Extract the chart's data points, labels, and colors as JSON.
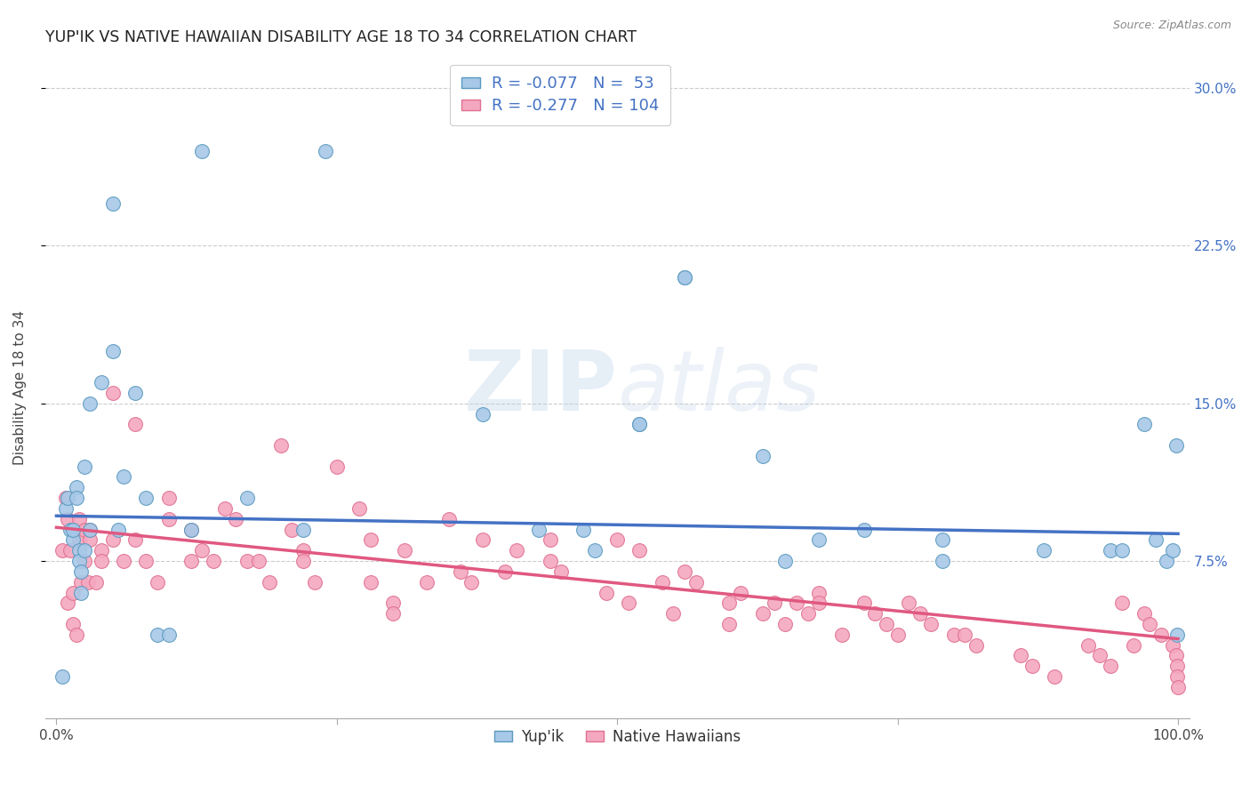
{
  "title": "YUP'IK VS NATIVE HAWAIIAN DISABILITY AGE 18 TO 34 CORRELATION CHART",
  "source": "Source: ZipAtlas.com",
  "ylabel": "Disability Age 18 to 34",
  "watermark": "ZIPatlas",
  "xlim": [
    -0.01,
    1.01
  ],
  "ylim": [
    0.0,
    0.315
  ],
  "xticks": [
    0.0,
    0.25,
    0.5,
    0.75,
    1.0
  ],
  "xticklabels": [
    "0.0%",
    "",
    "",
    "",
    "100.0%"
  ],
  "yticks": [
    0.075,
    0.15,
    0.225,
    0.3
  ],
  "yticklabels": [
    "7.5%",
    "15.0%",
    "22.5%",
    "30.0%"
  ],
  "yupik_color": "#a8c8e8",
  "yupik_edge": "#5a9abf",
  "nhawaiian_color": "#f4a8c0",
  "nhawaiian_edge": "#e07090",
  "line_yupik_color": "#4472c4",
  "line_nhawaiian_color": "#e05880",
  "title_fontsize": 12.5,
  "axis_label_fontsize": 11,
  "tick_fontsize": 11,
  "source_fontsize": 9,
  "yupik_x": [
    0.005,
    0.008,
    0.01,
    0.012,
    0.015,
    0.015,
    0.018,
    0.018,
    0.02,
    0.02,
    0.022,
    0.022,
    0.025,
    0.025,
    0.03,
    0.03,
    0.04,
    0.05,
    0.05,
    0.055,
    0.06,
    0.07,
    0.08,
    0.09,
    0.1,
    0.12,
    0.13,
    0.17,
    0.22,
    0.24,
    0.38,
    0.43,
    0.47,
    0.48,
    0.52,
    0.52,
    0.56,
    0.56,
    0.63,
    0.65,
    0.68,
    0.72,
    0.79,
    0.79,
    0.88,
    0.94,
    0.95,
    0.97,
    0.98,
    0.99,
    0.995,
    0.998,
    0.999
  ],
  "yupik_y": [
    0.02,
    0.1,
    0.105,
    0.09,
    0.085,
    0.09,
    0.11,
    0.105,
    0.08,
    0.075,
    0.07,
    0.06,
    0.12,
    0.08,
    0.15,
    0.09,
    0.16,
    0.245,
    0.175,
    0.09,
    0.115,
    0.155,
    0.105,
    0.04,
    0.04,
    0.09,
    0.27,
    0.105,
    0.09,
    0.27,
    0.145,
    0.09,
    0.09,
    0.08,
    0.14,
    0.14,
    0.21,
    0.21,
    0.125,
    0.075,
    0.085,
    0.09,
    0.075,
    0.085,
    0.08,
    0.08,
    0.08,
    0.14,
    0.085,
    0.075,
    0.08,
    0.13,
    0.04
  ],
  "nhawaiian_x": [
    0.005,
    0.008,
    0.01,
    0.01,
    0.012,
    0.015,
    0.015,
    0.018,
    0.02,
    0.02,
    0.022,
    0.025,
    0.025,
    0.028,
    0.03,
    0.03,
    0.035,
    0.04,
    0.04,
    0.05,
    0.05,
    0.06,
    0.07,
    0.07,
    0.08,
    0.09,
    0.1,
    0.1,
    0.12,
    0.12,
    0.13,
    0.14,
    0.15,
    0.16,
    0.17,
    0.18,
    0.19,
    0.2,
    0.21,
    0.22,
    0.22,
    0.23,
    0.25,
    0.27,
    0.28,
    0.28,
    0.3,
    0.3,
    0.31,
    0.33,
    0.35,
    0.36,
    0.37,
    0.38,
    0.4,
    0.41,
    0.44,
    0.44,
    0.45,
    0.49,
    0.5,
    0.51,
    0.52,
    0.54,
    0.55,
    0.56,
    0.57,
    0.6,
    0.6,
    0.61,
    0.63,
    0.64,
    0.65,
    0.66,
    0.67,
    0.68,
    0.68,
    0.7,
    0.72,
    0.73,
    0.74,
    0.75,
    0.76,
    0.77,
    0.78,
    0.8,
    0.81,
    0.82,
    0.86,
    0.87,
    0.89,
    0.92,
    0.93,
    0.94,
    0.95,
    0.96,
    0.97,
    0.975,
    0.985,
    0.995,
    0.998,
    0.999,
    0.9995,
    0.9999
  ],
  "nhawaiian_y": [
    0.08,
    0.105,
    0.095,
    0.055,
    0.08,
    0.06,
    0.045,
    0.04,
    0.095,
    0.085,
    0.065,
    0.09,
    0.075,
    0.065,
    0.09,
    0.085,
    0.065,
    0.08,
    0.075,
    0.155,
    0.085,
    0.075,
    0.14,
    0.085,
    0.075,
    0.065,
    0.105,
    0.095,
    0.09,
    0.075,
    0.08,
    0.075,
    0.1,
    0.095,
    0.075,
    0.075,
    0.065,
    0.13,
    0.09,
    0.08,
    0.075,
    0.065,
    0.12,
    0.1,
    0.085,
    0.065,
    0.055,
    0.05,
    0.08,
    0.065,
    0.095,
    0.07,
    0.065,
    0.085,
    0.07,
    0.08,
    0.085,
    0.075,
    0.07,
    0.06,
    0.085,
    0.055,
    0.08,
    0.065,
    0.05,
    0.07,
    0.065,
    0.055,
    0.045,
    0.06,
    0.05,
    0.055,
    0.045,
    0.055,
    0.05,
    0.06,
    0.055,
    0.04,
    0.055,
    0.05,
    0.045,
    0.04,
    0.055,
    0.05,
    0.045,
    0.04,
    0.04,
    0.035,
    0.03,
    0.025,
    0.02,
    0.035,
    0.03,
    0.025,
    0.055,
    0.035,
    0.05,
    0.045,
    0.04,
    0.035,
    0.03,
    0.025,
    0.02,
    0.015
  ],
  "yupik_line_x": [
    0.0,
    1.0
  ],
  "yupik_line_y": [
    0.0965,
    0.088
  ],
  "nhawaiian_line_x": [
    0.0,
    1.0
  ],
  "nhawaiian_line_y": [
    0.091,
    0.038
  ],
  "background_color": "#ffffff",
  "grid_color": "#cccccc"
}
